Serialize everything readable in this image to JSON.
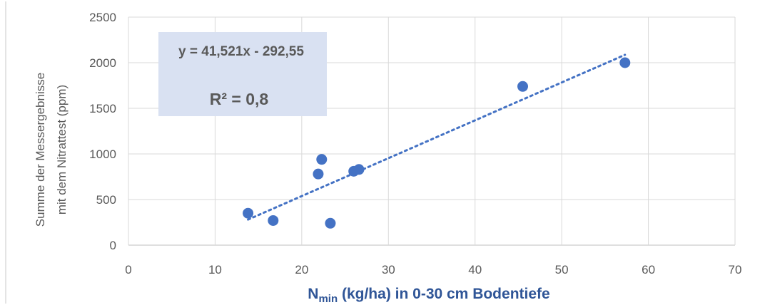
{
  "chart_data": {
    "type": "scatter",
    "xlabel_main": "N",
    "xlabel_sub": "min",
    "xlabel_rest": " (kg/ha) in 0-30 cm Bodentiefe",
    "ylabel_line1": "Summe der Messergebnisse",
    "ylabel_line2": "mit dem Nitrattest (ppm)",
    "xlim": [
      0,
      70
    ],
    "ylim": [
      0,
      2500
    ],
    "xticks": [
      0,
      10,
      20,
      30,
      40,
      50,
      60,
      70
    ],
    "yticks": [
      0,
      500,
      1000,
      1500,
      2000,
      2500
    ],
    "xtick_labels": [
      "0",
      "10",
      "20",
      "30",
      "40",
      "50",
      "60",
      "70"
    ],
    "ytick_labels": [
      "0",
      "500",
      "1000",
      "1500",
      "2000",
      "2500"
    ],
    "grid": true,
    "series": [
      {
        "color": "#4472C4",
        "points": [
          {
            "x": 13.8,
            "y": 350
          },
          {
            "x": 16.7,
            "y": 270
          },
          {
            "x": 21.9,
            "y": 780
          },
          {
            "x": 22.3,
            "y": 940
          },
          {
            "x": 23.3,
            "y": 240
          },
          {
            "x": 26.0,
            "y": 810
          },
          {
            "x": 26.6,
            "y": 830
          },
          {
            "x": 45.5,
            "y": 1740
          },
          {
            "x": 57.3,
            "y": 2000
          }
        ]
      }
    ],
    "trendline": {
      "type": "linear",
      "slope": 41.521,
      "intercept": -292.55,
      "x_range": [
        13.8,
        57.3
      ],
      "style": "dotted",
      "color": "#4472C4"
    },
    "equation_text": "y = 41,521x - 292,55",
    "r2_text": "R² = 0,8",
    "colors": {
      "marker": "#4472C4",
      "grid": "#D9D9D9",
      "axis_text": "#595959",
      "xlabel": "#2F5597",
      "eq_box": "#D9E1F2"
    }
  }
}
